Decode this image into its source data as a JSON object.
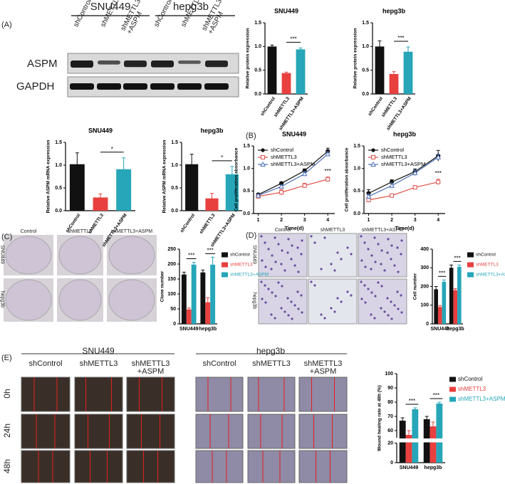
{
  "figure": {
    "panel_labels": [
      "(A)",
      "(B)",
      "(C)",
      "(D)",
      "(E)"
    ],
    "blot": {
      "cell_lines": [
        "SNU449",
        "hepg3b"
      ],
      "lanes": [
        "shControl",
        "shMETTL3",
        "shMETTL3\n+ASPM",
        "shControl",
        "shMETTL3",
        "shMETTL3\n+ASPM"
      ],
      "proteins": [
        "ASPM",
        "GAPDH"
      ]
    },
    "colony": {
      "columns": [
        "Control",
        "shMETTL3",
        "shMETTL3+ASPM"
      ],
      "rows": [
        "SNU449",
        "hepg3b"
      ]
    },
    "transwell": {
      "columns": [
        "Control",
        "shMETTL3",
        "shMETTL3+ASPM"
      ],
      "rows": [
        "SNU449",
        "hepg3b"
      ]
    },
    "wound": {
      "cell_lines": [
        "SNU449",
        "hepg3b"
      ],
      "columns": [
        "shControl",
        "shMETTL3",
        "shMETTL3\n+ASPM",
        "shControl",
        "shMETTL3",
        "shMETTL3\n+ASPM"
      ],
      "rows": [
        "0h",
        "24h",
        "48h"
      ]
    }
  },
  "chart_data": [
    {
      "type": "bar",
      "title": "SNU449",
      "ylabel": "Relative protein expression",
      "categories": [
        "shControl",
        "shMETTL3",
        "shMETTL3+ASPM"
      ],
      "values": [
        1.0,
        0.44,
        0.94
      ],
      "errors": [
        0.03,
        0.02,
        0.03
      ],
      "colors": [
        "#111111",
        "#e8403f",
        "#26a6b8"
      ],
      "ylim": [
        0,
        1.5
      ],
      "yticks": [
        {
          "value": 0,
          "label": "0.0"
        },
        0.5,
        {
          "value": 1,
          "label": "1.0"
        },
        1.5
      ],
      "annotation": "***"
    },
    {
      "type": "bar",
      "title": "hepg3b",
      "ylabel": "Relative protein expression",
      "categories": [
        "shControl",
        "shMETTL3",
        "shMETTL3+ASPM"
      ],
      "values": [
        1.0,
        0.42,
        0.89
      ],
      "errors": [
        0.12,
        0.05,
        0.1
      ],
      "colors": [
        "#111111",
        "#e8403f",
        "#26a6b8"
      ],
      "ylim": [
        0,
        1.5
      ],
      "yticks": [
        {
          "value": 0,
          "label": "0.0"
        },
        0.5,
        {
          "value": 1,
          "label": "1.0"
        },
        1.5
      ],
      "annotation": "***"
    },
    {
      "type": "bar",
      "title": "SNU449",
      "ylabel": "Relative ASPM mRNA expression",
      "categories": [
        "shControl",
        "shMETTL3",
        "shMETTL3+ASPM"
      ],
      "values": [
        1.02,
        0.29,
        0.91
      ],
      "errors": [
        0.25,
        0.08,
        0.25
      ],
      "colors": [
        "#111111",
        "#e8403f",
        "#26a6b8"
      ],
      "ylim": [
        0,
        1.5
      ],
      "yticks": [
        {
          "value": 0,
          "label": "0.0"
        },
        0.5,
        {
          "value": 1,
          "label": "1.0"
        },
        1.5
      ],
      "annotation": "*"
    },
    {
      "type": "bar",
      "title": "hepg3b",
      "ylabel": "Relative ASPM mRNA expression",
      "categories": [
        "shControl",
        "shMETTL3",
        "shMETTL3+ASPM"
      ],
      "values": [
        1.02,
        0.27,
        0.8
      ],
      "errors": [
        0.22,
        0.11,
        0.17
      ],
      "colors": [
        "#111111",
        "#e8403f",
        "#26a6b8"
      ],
      "ylim": [
        0,
        1.5
      ],
      "yticks": [
        {
          "value": 0,
          "label": "0.0"
        },
        0.5,
        {
          "value": 1,
          "label": "1.0"
        },
        1.5
      ],
      "annotation": "*"
    },
    {
      "type": "line",
      "title": "SNU449",
      "xlabel": "Time(d)",
      "ylabel": "Cell proliferation absorbance",
      "x": [
        1,
        2,
        3,
        4
      ],
      "xlim": [
        0.8,
        4.3
      ],
      "xticks": [
        1,
        2,
        3,
        4
      ],
      "ylim": [
        0,
        1.5
      ],
      "yticks": [
        {
          "value": 0,
          "label": "0.0"
        },
        0.5,
        {
          "value": 1,
          "label": "1.0"
        },
        1.5
      ],
      "legend": "upper left",
      "annotation": "***",
      "series": [
        {
          "name": "shControl",
          "color": "#111111",
          "marker": "circle",
          "values": [
            0.42,
            0.67,
            0.95,
            1.38
          ],
          "errors": [
            0.02,
            0.03,
            0.04,
            0.07
          ]
        },
        {
          "name": "shMETTL3",
          "color": "#e0504a",
          "marker": "square",
          "values": [
            0.38,
            0.47,
            0.62,
            0.76
          ],
          "errors": [
            0.03,
            0.06,
            0.05,
            0.05
          ]
        },
        {
          "name": "shMETTL3+ASPM",
          "color": "#4a6fb5",
          "marker": "triangle",
          "values": [
            0.4,
            0.6,
            0.88,
            1.32
          ],
          "errors": [
            0.02,
            0.03,
            0.05,
            0.05
          ]
        }
      ]
    },
    {
      "type": "line",
      "title": "hepg3b",
      "xlabel": "Time(d)",
      "ylabel": "Cell proliferation absorbance",
      "x": [
        1,
        2,
        3,
        4
      ],
      "xlim": [
        0.8,
        4.3
      ],
      "xticks": [
        1,
        2,
        3,
        4
      ],
      "ylim": [
        0,
        1.5
      ],
      "yticks": [
        {
          "value": 0,
          "label": "0.0"
        },
        0.5,
        {
          "value": 1,
          "label": "1.0"
        },
        1.5
      ],
      "legend": "upper left",
      "annotation": "***",
      "series": [
        {
          "name": "shControl",
          "color": "#111111",
          "marker": "circle",
          "values": [
            0.45,
            0.7,
            0.93,
            1.28
          ],
          "errors": [
            0.08,
            0.05,
            0.06,
            0.12
          ]
        },
        {
          "name": "shMETTL3",
          "color": "#e0504a",
          "marker": "square",
          "values": [
            0.3,
            0.4,
            0.58,
            0.7
          ],
          "errors": [
            0.05,
            0.03,
            0.04,
            0.06
          ]
        },
        {
          "name": "shMETTL3+ASPM",
          "color": "#4a6fb5",
          "marker": "triangle",
          "values": [
            0.38,
            0.62,
            0.9,
            1.25
          ],
          "errors": [
            0.05,
            0.06,
            0.06,
            0.06
          ]
        }
      ]
    },
    {
      "type": "grouped-bar",
      "ylabel": "Clone number",
      "categories": [
        "SNU449",
        "hepg3b"
      ],
      "ylim": [
        0,
        250
      ],
      "yticks": [
        0,
        50,
        100,
        150,
        200,
        250
      ],
      "legend": "right",
      "annotations": [
        "***",
        "***"
      ],
      "series": [
        {
          "name": "shControl",
          "color": "#111111",
          "values": [
            165,
            172
          ],
          "errors": [
            8,
            8
          ]
        },
        {
          "name": "shMETTL3",
          "color": "#e8403f",
          "values": [
            48,
            72
          ],
          "errors": [
            5,
            15
          ]
        },
        {
          "name": "shMETTL3+ASPM",
          "color": "#26a6b8",
          "values": [
            198,
            198
          ],
          "errors": [
            8,
            25
          ]
        }
      ]
    },
    {
      "type": "grouped-bar",
      "ylabel": "Cell number",
      "categories": [
        "SNU449",
        "hepg3b"
      ],
      "ylim": [
        0,
        400
      ],
      "yticks": [
        0,
        100,
        200,
        300,
        400
      ],
      "legend": "right",
      "annotations": [
        "***",
        "***"
      ],
      "series": [
        {
          "name": "shControl",
          "color": "#111111",
          "values": [
            185,
            300
          ],
          "errors": [
            15,
            15
          ]
        },
        {
          "name": "shMETTL3",
          "color": "#e8403f",
          "values": [
            90,
            180
          ],
          "errors": [
            8,
            8
          ]
        },
        {
          "name": "shMETTL3+ASPM",
          "color": "#26a6b8",
          "values": [
            225,
            305
          ],
          "errors": [
            10,
            10
          ]
        }
      ]
    },
    {
      "type": "grouped-bar",
      "ylabel": "Wound healing rate at 48h (%)",
      "categories": [
        "SNU449",
        "hepg3b"
      ],
      "ylim": [
        0,
        100
      ],
      "ybreak": [
        20,
        55
      ],
      "yticks": [
        0,
        20,
        60,
        70,
        80,
        90,
        100
      ],
      "legend": "right",
      "annotations": [
        "***",
        "***"
      ],
      "series": [
        {
          "name": "shControl",
          "color": "#111111",
          "values": [
            67,
            68
          ],
          "errors": [
            2,
            2
          ]
        },
        {
          "name": "shMETTL3",
          "color": "#e8403f",
          "values": [
            57,
            63
          ],
          "errors": [
            3,
            3
          ]
        },
        {
          "name": "shMETTL3+ASPM",
          "color": "#26a6b8",
          "values": [
            75,
            79
          ],
          "errors": [
            1,
            1
          ]
        }
      ]
    }
  ]
}
